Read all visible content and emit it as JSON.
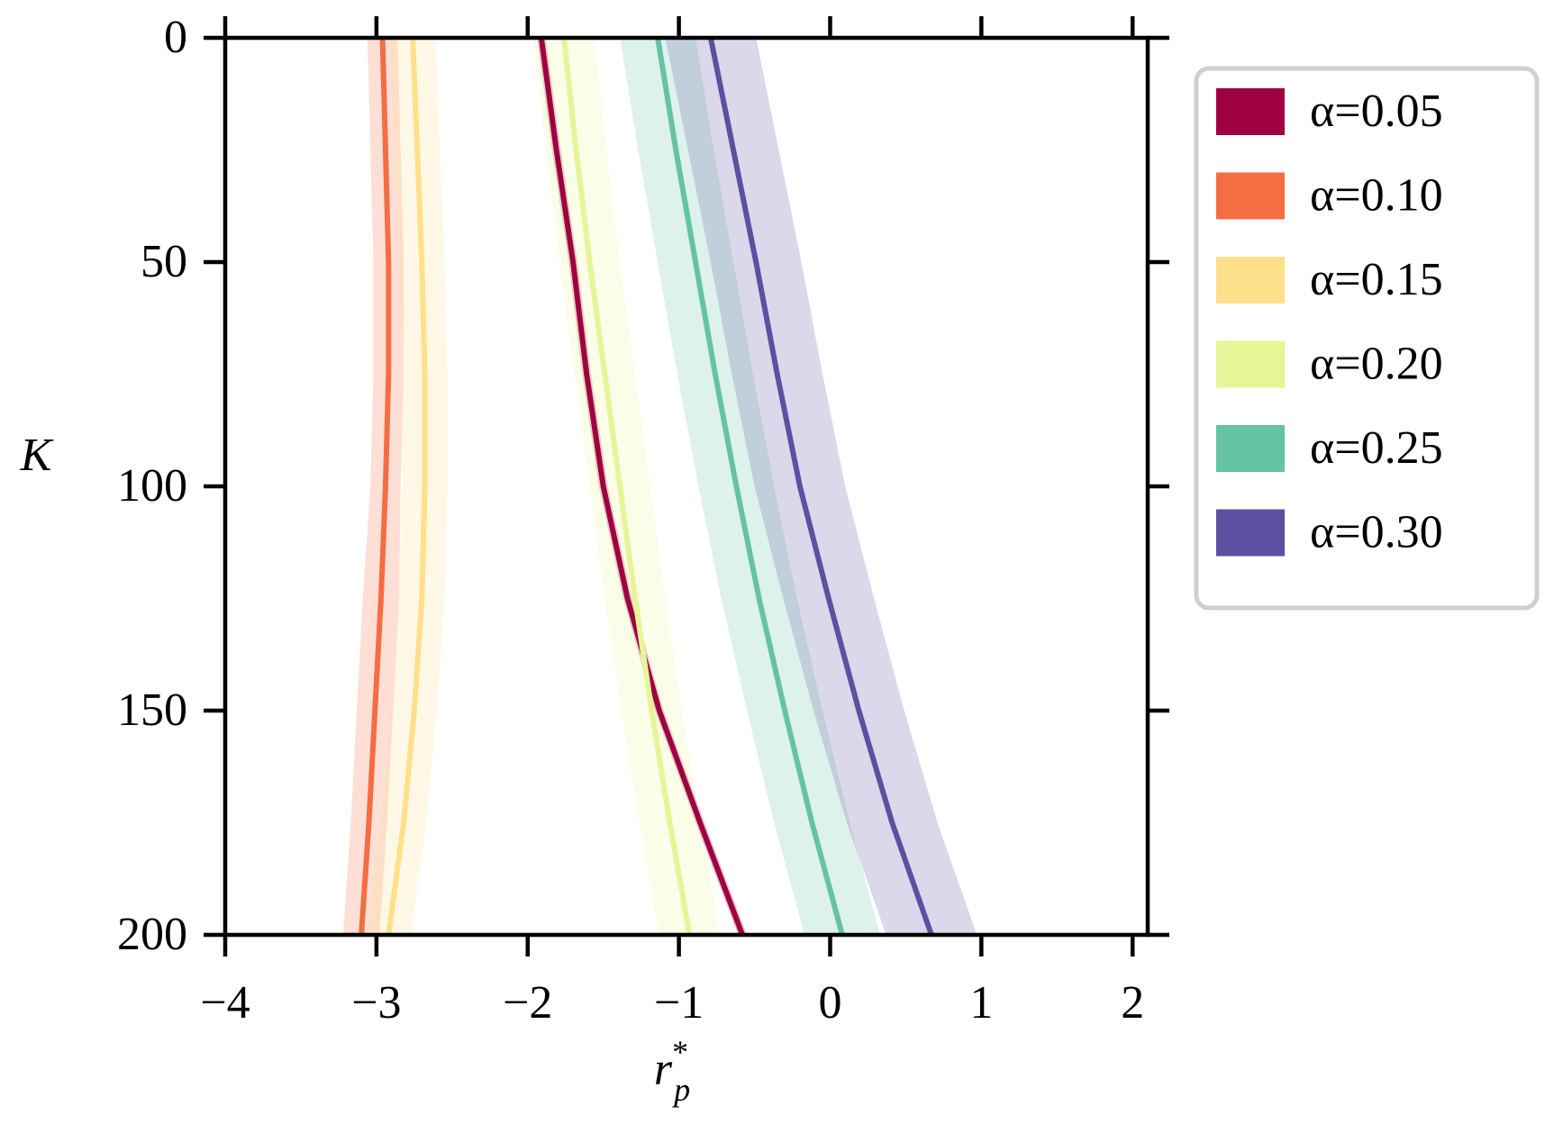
{
  "chart_data": {
    "type": "line",
    "xlabel": {
      "base": "r",
      "sup": "*",
      "sub": "p"
    },
    "ylabel": "K",
    "xlim": [
      -4,
      2.1
    ],
    "ylim": [
      0,
      200
    ],
    "y_inverted": true,
    "xticks": [
      {
        "value": -4,
        "label": "−4"
      },
      {
        "value": -3,
        "label": "−3"
      },
      {
        "value": -2,
        "label": "−2"
      },
      {
        "value": -1,
        "label": "−1"
      },
      0,
      1,
      2
    ],
    "yticks": [
      0,
      50,
      100,
      150,
      200
    ],
    "legend": "outside-right",
    "y": [
      0,
      25,
      50,
      75,
      100,
      125,
      150,
      175,
      200
    ],
    "series": [
      {
        "name": "α=0.05",
        "color": "#9e0142",
        "x": [
          -1.91,
          -1.81,
          -1.7,
          -1.61,
          -1.5,
          -1.34,
          -1.13,
          -0.86,
          -0.58
        ],
        "lower": [
          -1.94,
          -1.84,
          -1.73,
          -1.64,
          -1.53,
          -1.37,
          -1.16,
          -0.89,
          -0.61
        ],
        "upper": [
          -1.88,
          -1.78,
          -1.67,
          -1.58,
          -1.47,
          -1.31,
          -1.1,
          -0.83,
          -0.55
        ]
      },
      {
        "name": "α=0.10",
        "color": "#f46d43",
        "x": [
          -2.96,
          -2.94,
          -2.92,
          -2.92,
          -2.94,
          -2.97,
          -3.01,
          -3.05,
          -3.1
        ],
        "lower": [
          -3.06,
          -3.04,
          -3.02,
          -3.02,
          -3.04,
          -3.09,
          -3.13,
          -3.17,
          -3.22
        ],
        "upper": [
          -2.86,
          -2.84,
          -2.82,
          -2.82,
          -2.84,
          -2.85,
          -2.89,
          -2.93,
          -2.98
        ]
      },
      {
        "name": "α=0.15",
        "color": "#fee08b",
        "x": [
          -2.76,
          -2.73,
          -2.7,
          -2.68,
          -2.68,
          -2.7,
          -2.75,
          -2.82,
          -2.92
        ],
        "lower": [
          -2.91,
          -2.88,
          -2.85,
          -2.83,
          -2.83,
          -2.85,
          -2.9,
          -2.97,
          -3.07
        ],
        "upper": [
          -2.61,
          -2.58,
          -2.55,
          -2.53,
          -2.53,
          -2.55,
          -2.6,
          -2.67,
          -2.77
        ]
      },
      {
        "name": "α=0.20",
        "color": "#e6f598",
        "x": [
          -1.76,
          -1.68,
          -1.59,
          -1.49,
          -1.39,
          -1.29,
          -1.18,
          -1.06,
          -0.93
        ],
        "lower": [
          -1.96,
          -1.88,
          -1.79,
          -1.69,
          -1.59,
          -1.49,
          -1.38,
          -1.26,
          -1.13
        ],
        "upper": [
          -1.56,
          -1.48,
          -1.39,
          -1.29,
          -1.19,
          -1.09,
          -0.98,
          -0.86,
          -0.73
        ]
      },
      {
        "name": "α=0.25",
        "color": "#66c2a5",
        "x": [
          -1.14,
          -1.02,
          -0.89,
          -0.76,
          -0.62,
          -0.47,
          -0.3,
          -0.12,
          0.08
        ],
        "lower": [
          -1.39,
          -1.27,
          -1.14,
          -1.01,
          -0.87,
          -0.72,
          -0.55,
          -0.37,
          -0.17
        ],
        "upper": [
          -0.89,
          -0.77,
          -0.64,
          -0.51,
          -0.37,
          -0.22,
          -0.05,
          0.13,
          0.33
        ]
      },
      {
        "name": "α=0.30",
        "color": "#5e4fa2",
        "x": [
          -0.79,
          -0.64,
          -0.49,
          -0.35,
          -0.2,
          -0.01,
          0.19,
          0.41,
          0.67
        ],
        "lower": [
          -1.09,
          -0.94,
          -0.79,
          -0.65,
          -0.5,
          -0.31,
          -0.11,
          0.11,
          0.37
        ],
        "upper": [
          -0.49,
          -0.34,
          -0.19,
          -0.05,
          0.1,
          0.29,
          0.49,
          0.71,
          0.97
        ]
      }
    ]
  }
}
